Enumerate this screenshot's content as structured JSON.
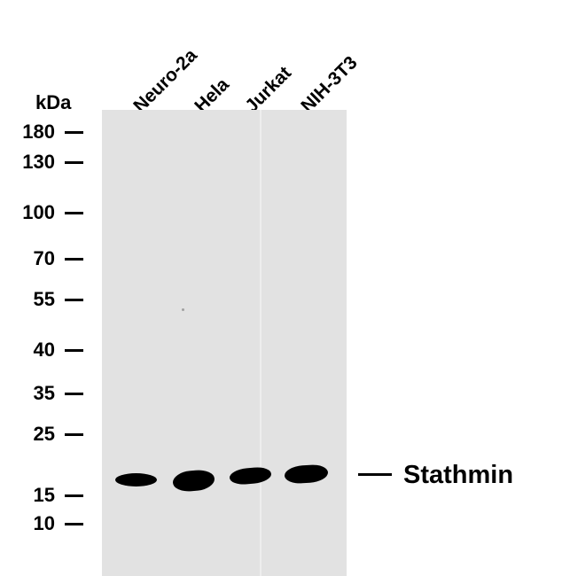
{
  "lanes": [
    "Neuro-2a",
    "Hela",
    "Jurkat",
    "NIH-3T3"
  ],
  "mw_unit": "kDa",
  "mw_markers": [
    "180",
    "130",
    "100",
    "70",
    "55",
    "40",
    "35",
    "25",
    "15",
    "10"
  ],
  "target": {
    "name": "Stathmin"
  },
  "colors": {
    "membrane": "#e2e2e2",
    "band": "#000000",
    "background": "#ffffff"
  }
}
